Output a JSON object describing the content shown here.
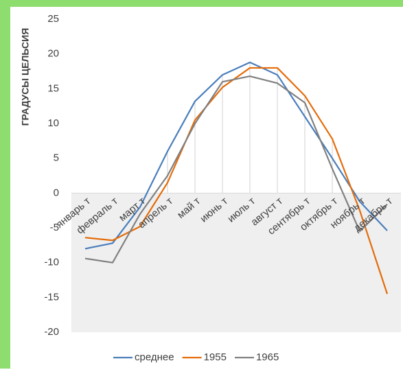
{
  "chart_data": {
    "type": "line",
    "y_label": "ГРАДУСЫ ЦЕЛЬСИЯ",
    "categories": [
      "январь т",
      "февраль т",
      "март т",
      "апрель т",
      "май т",
      "июнь т",
      "июль т",
      "август т",
      "сентябрь т",
      "октябрь т",
      "ноябрь т",
      "декабрь т"
    ],
    "series": [
      {
        "name": "среднее",
        "color": "#4a7ebb",
        "values": [
          -8,
          -7.2,
          -2,
          6,
          13.2,
          17,
          18.8,
          17,
          11,
          5,
          -1.2,
          -5.4
        ]
      },
      {
        "name": "1955",
        "color": "#e46c0a",
        "values": [
          -6.4,
          -6.8,
          -4.8,
          1.5,
          10.5,
          15.2,
          18,
          18,
          14,
          7.8,
          -2.5,
          -14.5
        ]
      },
      {
        "name": "1965",
        "color": "#808080",
        "values": [
          -9.4,
          -10,
          -3,
          2.5,
          10,
          16,
          16.8,
          15.8,
          13,
          3.5,
          -5.5,
          -1.6
        ]
      }
    ],
    "ylim": [
      -20,
      25
    ],
    "yticks": [
      -20,
      -15,
      -10,
      -5,
      0,
      5,
      10,
      15,
      20,
      25
    ]
  }
}
